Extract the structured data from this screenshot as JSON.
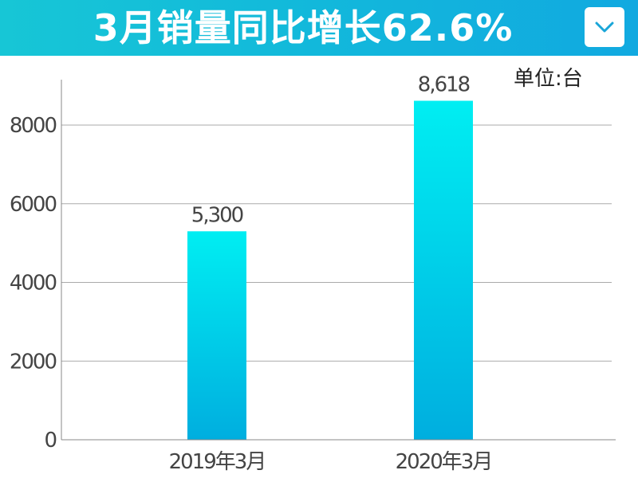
{
  "header": {
    "title": "3月销量同比增长62.6%",
    "icon": "chevron-down-icon",
    "accent_color": "#12b8db"
  },
  "unit_label": "单位:台",
  "chart_data": {
    "type": "bar",
    "categories": [
      "2019年3月",
      "2020年3月"
    ],
    "values": [
      5300,
      8618
    ],
    "value_labels": [
      "5,300",
      "8,618"
    ],
    "yticks": [
      0,
      2000,
      4000,
      6000,
      8000
    ],
    "ylim": [
      0,
      9000
    ],
    "grid": true,
    "bar_color_top": "#00eef2",
    "bar_color_bottom": "#00aedf",
    "title": "",
    "xlabel": "",
    "ylabel": ""
  }
}
